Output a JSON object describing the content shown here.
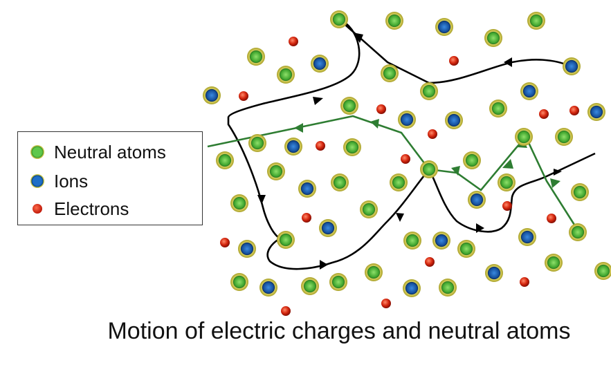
{
  "legend": {
    "neutral": "Neutral atoms",
    "ions": "Ions",
    "electrons": "Electrons"
  },
  "caption": "Motion of electric charges and neutral atoms",
  "colors": {
    "neutral_core": "#4cb83a",
    "neutral_ring": "#c8c040",
    "ion_core": "#1a5fb4",
    "electron": "#d42a12",
    "path_black": "#000000",
    "path_green": "#2e7d32"
  }
}
